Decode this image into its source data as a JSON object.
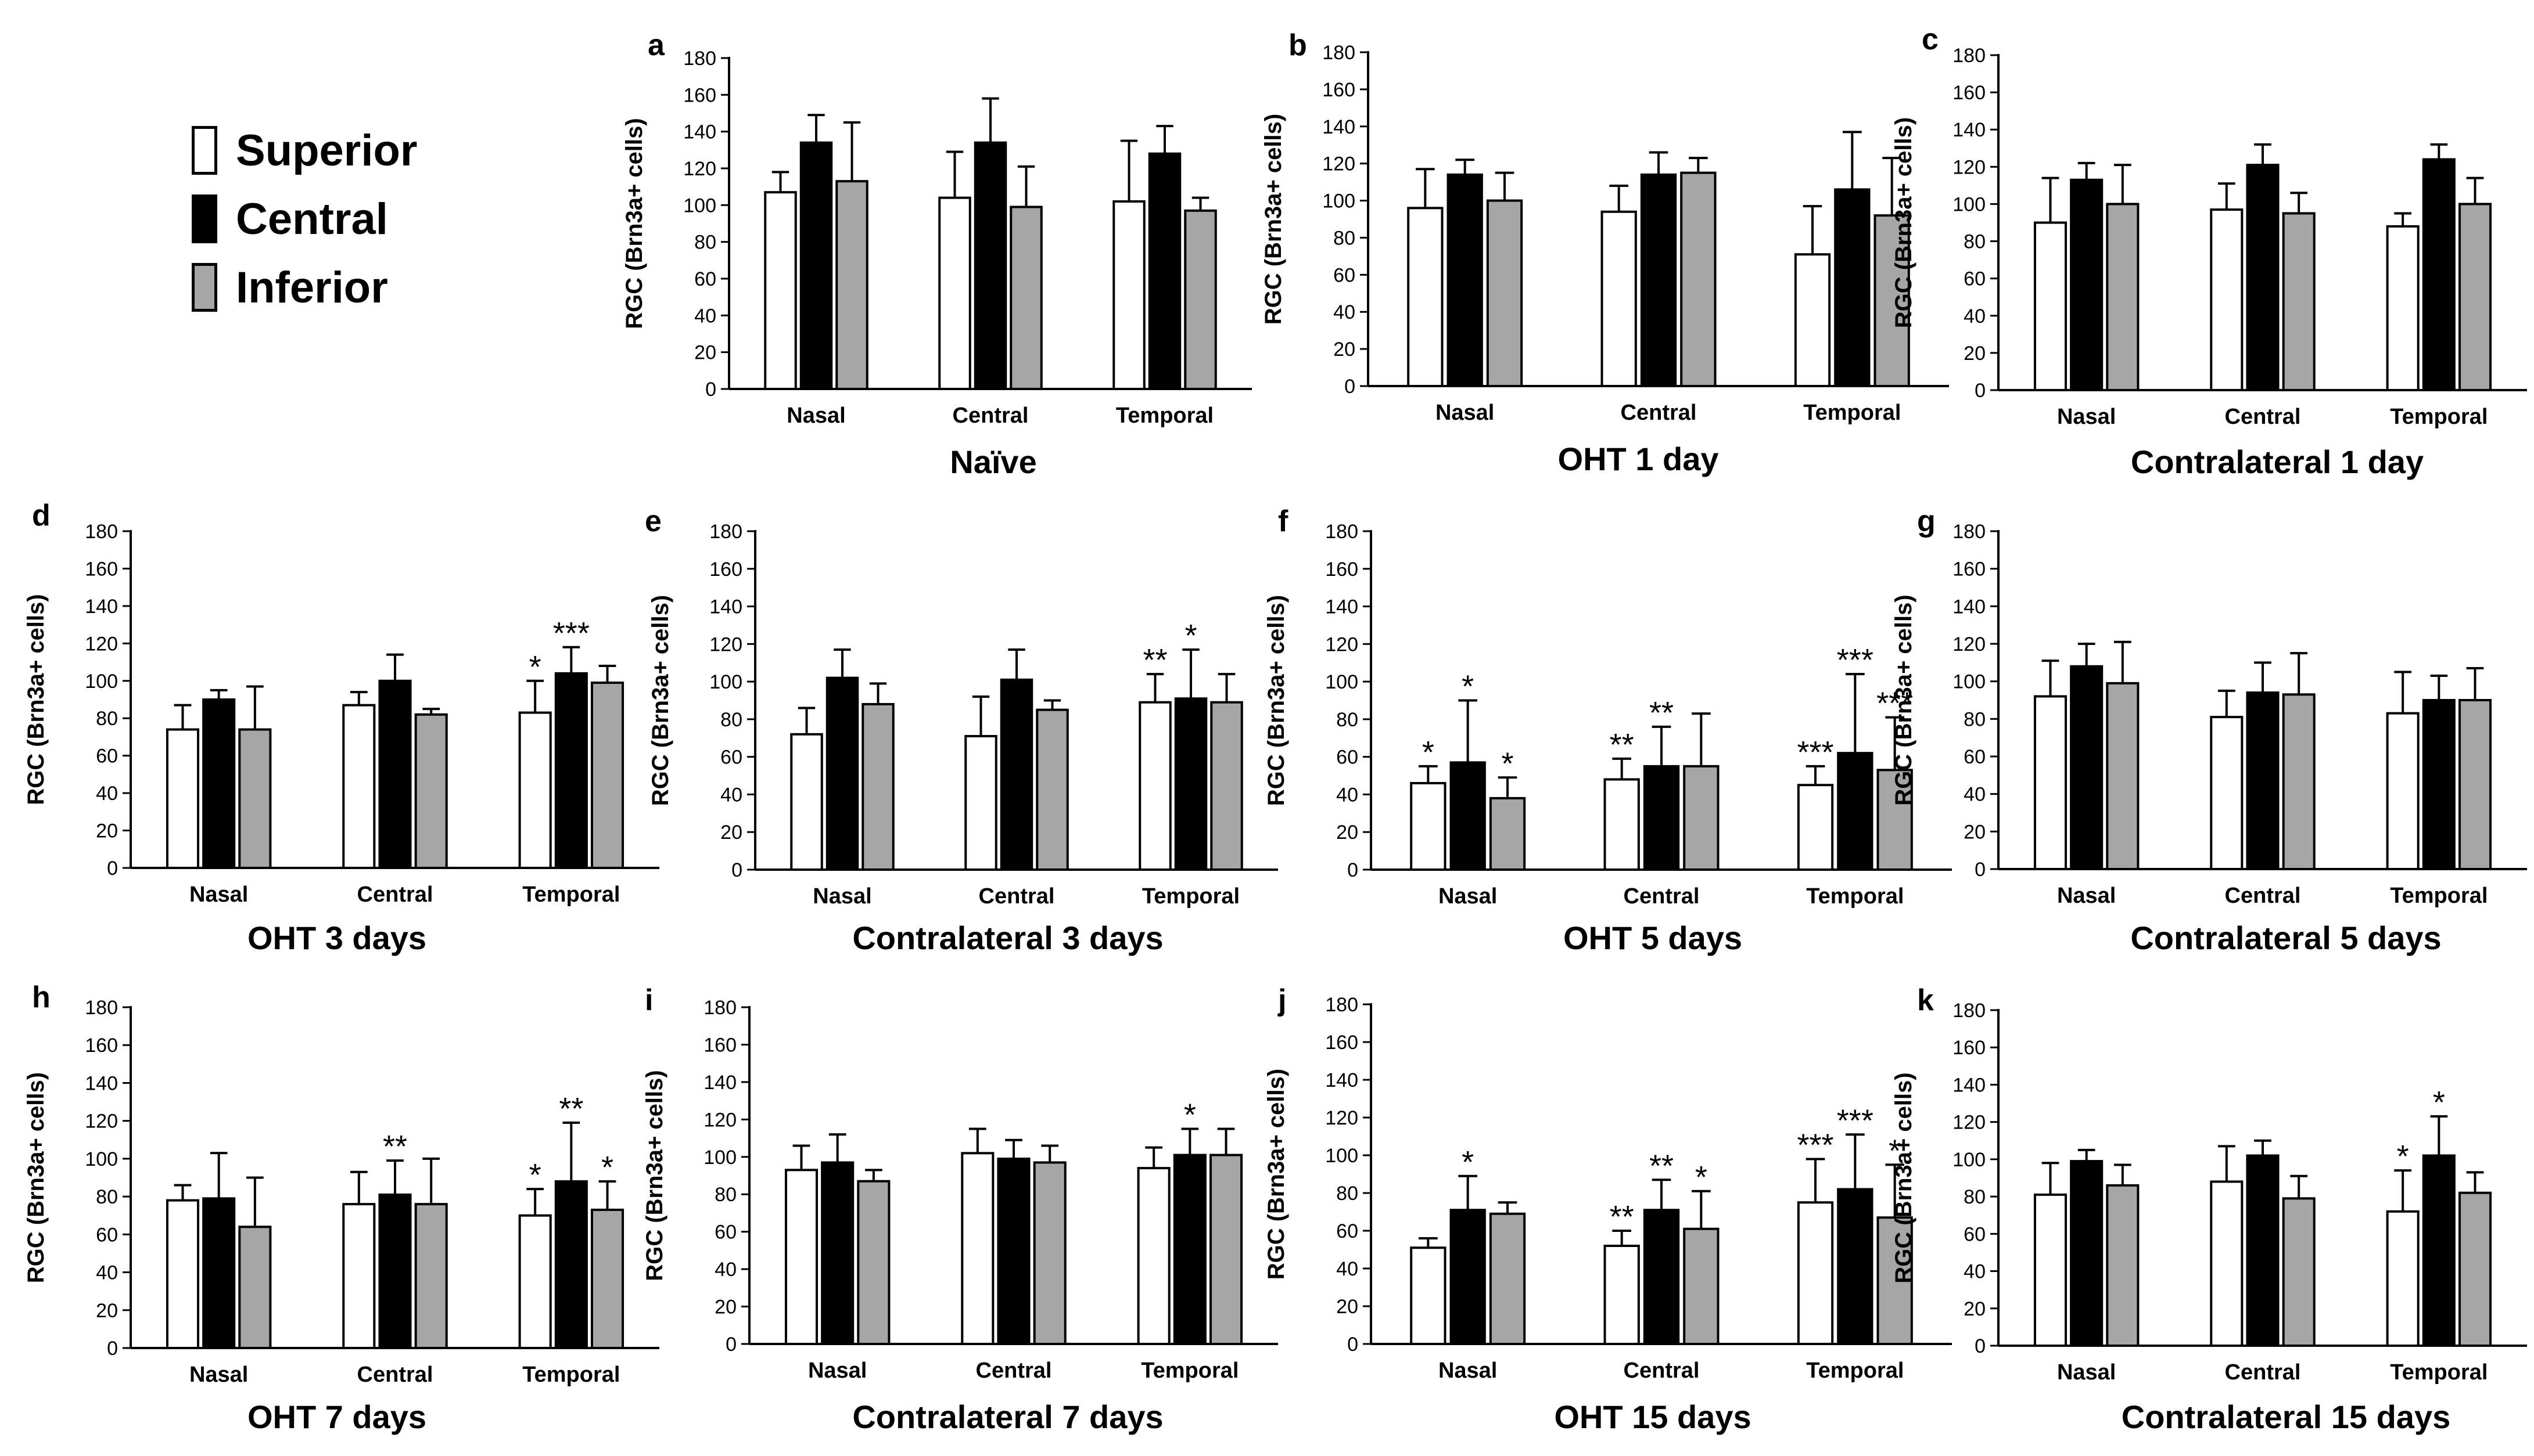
{
  "colors": {
    "superior": "#ffffff",
    "central": "#000000",
    "inferior": "#a6a6a6",
    "ink": "#000000"
  },
  "legend": [
    {
      "label": "Superior",
      "color": "#ffffff"
    },
    {
      "label": "Central",
      "color": "#000000"
    },
    {
      "label": "Inferior",
      "color": "#a6a6a6"
    }
  ],
  "chart_data": [
    {
      "type": "bar",
      "panel": "a",
      "title": "Naïve",
      "ylabel": "RGC (Brn3a+ cells)",
      "ylim": [
        0,
        180
      ],
      "yticks": [
        0,
        20,
        40,
        60,
        80,
        100,
        120,
        140,
        160,
        180
      ],
      "categories": [
        "Nasal",
        "Central",
        "Temporal"
      ],
      "series": [
        {
          "name": "Superior",
          "values": [
            107,
            104,
            102
          ],
          "errors": [
            11,
            25,
            33
          ],
          "annotations": [
            "",
            "",
            ""
          ]
        },
        {
          "name": "Central",
          "values": [
            134,
            134,
            128
          ],
          "errors": [
            15,
            24,
            15
          ],
          "annotations": [
            "",
            "",
            ""
          ]
        },
        {
          "name": "Inferior",
          "values": [
            113,
            99,
            97
          ],
          "errors": [
            32,
            22,
            7
          ],
          "annotations": [
            "",
            "",
            ""
          ]
        }
      ]
    },
    {
      "type": "bar",
      "panel": "b",
      "title": "OHT 1 day",
      "ylabel": "RGC (Brn3a+ cells)",
      "ylim": [
        0,
        180
      ],
      "yticks": [
        0,
        20,
        40,
        60,
        80,
        100,
        120,
        140,
        160,
        180
      ],
      "categories": [
        "Nasal",
        "Central",
        "Temporal"
      ],
      "series": [
        {
          "name": "Superior",
          "values": [
            96,
            94,
            71
          ],
          "errors": [
            21,
            14,
            26
          ],
          "annotations": [
            "",
            "",
            ""
          ]
        },
        {
          "name": "Central",
          "values": [
            114,
            114,
            106
          ],
          "errors": [
            8,
            12,
            31
          ],
          "annotations": [
            "",
            "",
            ""
          ]
        },
        {
          "name": "Inferior",
          "values": [
            100,
            115,
            92
          ],
          "errors": [
            15,
            8,
            31
          ],
          "annotations": [
            "",
            "",
            ""
          ]
        }
      ]
    },
    {
      "type": "bar",
      "panel": "c",
      "title": "Contralateral 1 day",
      "ylabel": "RGC (Brn3a+ cells)",
      "ylim": [
        0,
        180
      ],
      "yticks": [
        0,
        20,
        40,
        60,
        80,
        100,
        120,
        140,
        160,
        180
      ],
      "categories": [
        "Nasal",
        "Central",
        "Temporal"
      ],
      "series": [
        {
          "name": "Superior",
          "values": [
            90,
            97,
            88
          ],
          "errors": [
            24,
            14,
            7
          ],
          "annotations": [
            "",
            "",
            ""
          ]
        },
        {
          "name": "Central",
          "values": [
            113,
            121,
            124
          ],
          "errors": [
            9,
            11,
            8
          ],
          "annotations": [
            "",
            "",
            ""
          ]
        },
        {
          "name": "Inferior",
          "values": [
            100,
            95,
            100
          ],
          "errors": [
            21,
            11,
            14
          ],
          "annotations": [
            "",
            "",
            ""
          ]
        }
      ]
    },
    {
      "type": "bar",
      "panel": "d",
      "title": "OHT 3 days",
      "ylabel": "RGC (Brn3a+ cells)",
      "ylim": [
        0,
        180
      ],
      "yticks": [
        0,
        20,
        40,
        60,
        80,
        100,
        120,
        140,
        160,
        180
      ],
      "categories": [
        "Nasal",
        "Central",
        "Temporal"
      ],
      "series": [
        {
          "name": "Superior",
          "values": [
            74,
            87,
            83
          ],
          "errors": [
            13,
            7,
            17
          ],
          "annotations": [
            "",
            "",
            "*"
          ]
        },
        {
          "name": "Central",
          "values": [
            90,
            100,
            104
          ],
          "errors": [
            5,
            14,
            14
          ],
          "annotations": [
            "",
            "",
            "***"
          ]
        },
        {
          "name": "Inferior",
          "values": [
            74,
            82,
            99
          ],
          "errors": [
            23,
            3,
            9
          ],
          "annotations": [
            "",
            "",
            ""
          ]
        }
      ]
    },
    {
      "type": "bar",
      "panel": "e",
      "title": "Contralateral 3 days",
      "ylabel": "RGC (Brn3a+ cells)",
      "ylim": [
        0,
        180
      ],
      "yticks": [
        0,
        20,
        40,
        60,
        80,
        100,
        120,
        140,
        160,
        180
      ],
      "categories": [
        "Nasal",
        "Central",
        "Temporal"
      ],
      "series": [
        {
          "name": "Superior",
          "values": [
            72,
            71,
            89
          ],
          "errors": [
            14,
            21,
            15
          ],
          "annotations": [
            "",
            "",
            "**"
          ]
        },
        {
          "name": "Central",
          "values": [
            102,
            101,
            91
          ],
          "errors": [
            15,
            16,
            26
          ],
          "annotations": [
            "",
            "",
            "*"
          ]
        },
        {
          "name": "Inferior",
          "values": [
            88,
            85,
            89
          ],
          "errors": [
            11,
            5,
            15
          ],
          "annotations": [
            "",
            "",
            ""
          ]
        }
      ]
    },
    {
      "type": "bar",
      "panel": "f",
      "title": "OHT 5 days",
      "ylabel": "RGC (Brn3a+ cells)",
      "ylim": [
        0,
        180
      ],
      "yticks": [
        0,
        20,
        40,
        60,
        80,
        100,
        120,
        140,
        160,
        180
      ],
      "categories": [
        "Nasal",
        "Central",
        "Temporal"
      ],
      "series": [
        {
          "name": "Superior",
          "values": [
            46,
            48,
            45
          ],
          "errors": [
            9,
            11,
            10
          ],
          "annotations": [
            "*",
            "**",
            "***"
          ]
        },
        {
          "name": "Central",
          "values": [
            57,
            55,
            62
          ],
          "errors": [
            33,
            21,
            42
          ],
          "annotations": [
            "*",
            "**",
            "***"
          ]
        },
        {
          "name": "Inferior",
          "values": [
            38,
            55,
            53
          ],
          "errors": [
            11,
            28,
            28
          ],
          "annotations": [
            "*",
            "",
            "***"
          ]
        }
      ]
    },
    {
      "type": "bar",
      "panel": "g",
      "title": "Contralateral 5 days",
      "ylabel": "RGC (Brn3a+ cells)",
      "ylim": [
        0,
        180
      ],
      "yticks": [
        0,
        20,
        40,
        60,
        80,
        100,
        120,
        140,
        160,
        180
      ],
      "categories": [
        "Nasal",
        "Central",
        "Temporal"
      ],
      "series": [
        {
          "name": "Superior",
          "values": [
            92,
            81,
            83
          ],
          "errors": [
            19,
            14,
            22
          ],
          "annotations": [
            "",
            "",
            ""
          ]
        },
        {
          "name": "Central",
          "values": [
            108,
            94,
            90
          ],
          "errors": [
            12,
            16,
            13
          ],
          "annotations": [
            "",
            "",
            ""
          ]
        },
        {
          "name": "Inferior",
          "values": [
            99,
            93,
            90
          ],
          "errors": [
            22,
            22,
            17
          ],
          "annotations": [
            "",
            "",
            ""
          ]
        }
      ]
    },
    {
      "type": "bar",
      "panel": "h",
      "title": "OHT 7 days",
      "ylabel": "RGC (Brn3a+ cells)",
      "ylim": [
        0,
        180
      ],
      "yticks": [
        0,
        20,
        40,
        60,
        80,
        100,
        120,
        140,
        160,
        180
      ],
      "categories": [
        "Nasal",
        "Central",
        "Temporal"
      ],
      "series": [
        {
          "name": "Superior",
          "values": [
            78,
            76,
            70
          ],
          "errors": [
            8,
            17,
            14
          ],
          "annotations": [
            "",
            "",
            "*"
          ]
        },
        {
          "name": "Central",
          "values": [
            79,
            81,
            88
          ],
          "errors": [
            24,
            18,
            31
          ],
          "annotations": [
            "",
            "**",
            "**"
          ]
        },
        {
          "name": "Inferior",
          "values": [
            64,
            76,
            73
          ],
          "errors": [
            26,
            24,
            15
          ],
          "annotations": [
            "",
            "",
            "*"
          ]
        }
      ]
    },
    {
      "type": "bar",
      "panel": "i",
      "title": "Contralateral 7 days",
      "ylabel": "RGC (Brn3a+ cells)",
      "ylim": [
        0,
        180
      ],
      "yticks": [
        0,
        20,
        40,
        60,
        80,
        100,
        120,
        140,
        160,
        180
      ],
      "categories": [
        "Nasal",
        "Central",
        "Temporal"
      ],
      "series": [
        {
          "name": "Superior",
          "values": [
            93,
            102,
            94
          ],
          "errors": [
            13,
            13,
            11
          ],
          "annotations": [
            "",
            "",
            ""
          ]
        },
        {
          "name": "Central",
          "values": [
            97,
            99,
            101
          ],
          "errors": [
            15,
            10,
            14
          ],
          "annotations": [
            "",
            "",
            "*"
          ]
        },
        {
          "name": "Inferior",
          "values": [
            87,
            97,
            101
          ],
          "errors": [
            6,
            9,
            14
          ],
          "annotations": [
            "",
            "",
            ""
          ]
        }
      ]
    },
    {
      "type": "bar",
      "panel": "j",
      "title": "OHT 15 days",
      "ylabel": "RGC (Brn3a+ cells)",
      "ylim": [
        0,
        180
      ],
      "yticks": [
        0,
        20,
        40,
        60,
        80,
        100,
        120,
        140,
        160,
        180
      ],
      "categories": [
        "Nasal",
        "Central",
        "Temporal"
      ],
      "series": [
        {
          "name": "Superior",
          "values": [
            51,
            52,
            75
          ],
          "errors": [
            5,
            8,
            23
          ],
          "annotations": [
            "",
            "**",
            "***"
          ]
        },
        {
          "name": "Central",
          "values": [
            71,
            71,
            82
          ],
          "errors": [
            18,
            16,
            29
          ],
          "annotations": [
            "*",
            "**",
            "***"
          ]
        },
        {
          "name": "Inferior",
          "values": [
            69,
            61,
            67
          ],
          "errors": [
            6,
            20,
            28
          ],
          "annotations": [
            "",
            "*",
            "*"
          ]
        }
      ]
    },
    {
      "type": "bar",
      "panel": "k",
      "title": "Contralateral 15 days",
      "ylabel": "RGC (Brn3a+ cells)",
      "ylim": [
        0,
        180
      ],
      "yticks": [
        0,
        20,
        40,
        60,
        80,
        100,
        120,
        140,
        160,
        180
      ],
      "categories": [
        "Nasal",
        "Central",
        "Temporal"
      ],
      "series": [
        {
          "name": "Superior",
          "values": [
            81,
            88,
            72
          ],
          "errors": [
            17,
            19,
            22
          ],
          "annotations": [
            "",
            "",
            "*"
          ]
        },
        {
          "name": "Central",
          "values": [
            99,
            102,
            102
          ],
          "errors": [
            6,
            8,
            21
          ],
          "annotations": [
            "",
            "",
            "*"
          ]
        },
        {
          "name": "Inferior",
          "values": [
            86,
            79,
            82
          ],
          "errors": [
            11,
            12,
            11
          ],
          "annotations": [
            "",
            "",
            ""
          ]
        }
      ]
    }
  ]
}
